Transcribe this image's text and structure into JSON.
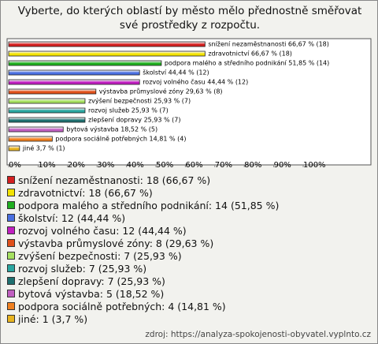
{
  "chart_data": {
    "type": "bar",
    "orientation": "horizontal",
    "title": "Vyberte, do kterých oblastí by město mělo přednostně směřovat své prostředky z rozpočtu.",
    "categories": [
      "snížení nezaměstnanosti",
      "zdravotnictví",
      "podpora malého a středního podnikání",
      "školství",
      "rozvoj volného času",
      "výstavba průmyslové zóny",
      "zvýšení bezpečnosti",
      "rozvoj služeb",
      "zlepšení dopravy",
      "bytová výstavba",
      "podpora sociálně potřebných",
      "jiné"
    ],
    "values": [
      66.67,
      66.67,
      51.85,
      44.44,
      44.44,
      29.63,
      25.93,
      25.93,
      25.93,
      18.52,
      14.81,
      3.7
    ],
    "value_labels": [
      "snížení nezaměstnanosti 66,67 % (18)",
      "zdravotnictví 66,67 % (18)",
      "podpora malého a středního podnikání 51,85 % (14)",
      "školství 44,44 % (12)",
      "rozvoj volného času 44,44 % (12)",
      "výstavba průmyslové zóny 29,63 % (8)",
      "zvýšení bezpečnosti 25,93 % (7)",
      "rozvoj služeb 25,93 % (7)",
      "zlepšení dopravy 25,93 % (7)",
      "bytová výstavba 18,52 % (5)",
      "podpora sociálně potřebných 14,81 % (4)",
      "jiné 3,7 % (1)"
    ],
    "legend_labels": [
      "snížení nezaměstnanosti: 18 (66,67 %)",
      "zdravotnictví: 18 (66,67 %)",
      "podpora malého a středního podnikání: 14 (51,85 %)",
      "školství: 12 (44,44 %)",
      "rozvoj volného času: 12 (44,44 %)",
      "výstavba průmyslové zóny: 8 (29,63 %)",
      "zvýšení bezpečnosti: 7 (25,93 %)",
      "rozvoj služeb: 7 (25,93 %)",
      "zlepšení dopravy: 7 (25,93 %)",
      "bytová výstavba: 5 (18,52 %)",
      "podpora sociálně potřebných: 4 (14,81 %)",
      "jiné: 1 (3,7 %)"
    ],
    "colors": [
      "#d42020",
      "#f2e200",
      "#1fae1f",
      "#4a6fe0",
      "#c01fc0",
      "#e0501a",
      "#a6e060",
      "#2aa6a0",
      "#1f7070",
      "#c05fc0",
      "#f08020",
      "#e8b420"
    ],
    "xlim": [
      0,
      123
    ],
    "xticks": [
      {
        "value": 0,
        "label": "0%"
      },
      {
        "value": 10,
        "label": "10%"
      },
      {
        "value": 20,
        "label": "20%"
      },
      {
        "value": 30,
        "label": "30%"
      },
      {
        "value": 40,
        "label": "40%"
      },
      {
        "value": 50,
        "label": "50%"
      },
      {
        "value": 60,
        "label": "60%"
      },
      {
        "value": 70,
        "label": "70%"
      },
      {
        "value": 80,
        "label": "80%"
      },
      {
        "value": 90,
        "label": "90%"
      },
      {
        "value": 100,
        "label": "100%"
      }
    ],
    "source": "zdroj: https://analyza-spokojenosti-obyvatel.vyplnto.cz"
  }
}
